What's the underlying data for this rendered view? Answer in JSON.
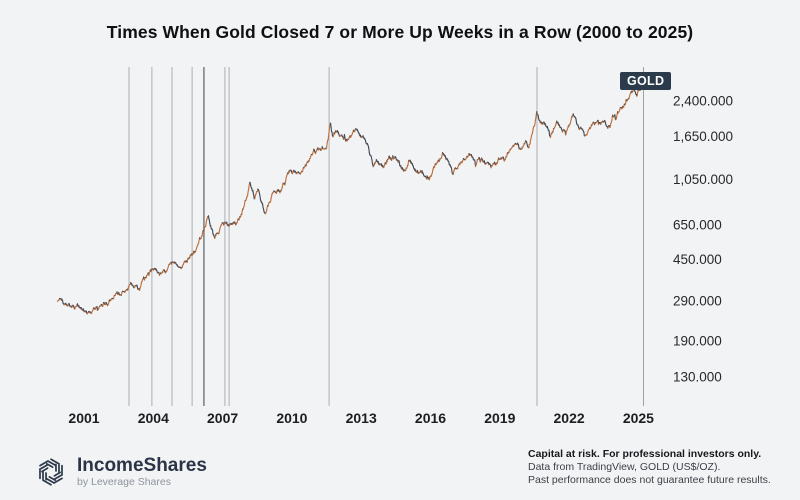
{
  "title": "Times When Gold Closed 7 or More Up Weeks in a Row (2000 to 2025)",
  "symbol_badge": "GOLD",
  "footer": {
    "brand": "IncomeShares",
    "tagline": "by Leverage Shares",
    "disclaimer": {
      "line1": "Capital at risk. For professional investors only.",
      "line2": "Data from TradingView, GOLD (US$/OZ).",
      "line3": "Past performance does not guarantee future results."
    }
  },
  "chart_data": {
    "type": "line",
    "title": "Times When Gold Closed 7 or More Up Weeks in a Row (2000 to 2025)",
    "symbol": "GOLD",
    "unit": "US$/OZ",
    "y_scale": "log",
    "grid": "off",
    "legend_position": "none",
    "x_range_years": [
      1999.85,
      2025.4
    ],
    "x_tick_labels": [
      "2001",
      "2004",
      "2007",
      "2010",
      "2013",
      "2016",
      "2019",
      "2022",
      "2025"
    ],
    "y_ticks": [
      {
        "label": "2,400.000",
        "value": 2400
      },
      {
        "label": "1,650.000",
        "value": 1650
      },
      {
        "label": "1,050.000",
        "value": 1050
      },
      {
        "label": "650.000",
        "value": 650
      },
      {
        "label": "450.000",
        "value": 450
      },
      {
        "label": "290.000",
        "value": 290
      },
      {
        "label": "190.000",
        "value": 190
      },
      {
        "label": "130.000",
        "value": 130
      }
    ],
    "event_markers": [
      {
        "year": 2002.95
      },
      {
        "year": 2003.94
      },
      {
        "year": 2004.81
      },
      {
        "year": 2005.68
      },
      {
        "year": 2006.19,
        "emphasis": true
      },
      {
        "year": 2007.1
      },
      {
        "year": 2007.28
      },
      {
        "year": 2011.61
      },
      {
        "year": 2020.61
      }
    ],
    "series": [
      {
        "name": "GOLD",
        "anchors_year_price": [
          [
            1999.85,
            292
          ],
          [
            2000.0,
            290
          ],
          [
            2000.6,
            277
          ],
          [
            2001.25,
            259
          ],
          [
            2001.8,
            278
          ],
          [
            2002.5,
            312
          ],
          [
            2003.05,
            352
          ],
          [
            2003.35,
            330
          ],
          [
            2003.95,
            408
          ],
          [
            2004.35,
            385
          ],
          [
            2004.95,
            438
          ],
          [
            2005.25,
            422
          ],
          [
            2005.85,
            490
          ],
          [
            2006.38,
            715
          ],
          [
            2006.62,
            572
          ],
          [
            2006.9,
            630
          ],
          [
            2007.3,
            655
          ],
          [
            2007.6,
            660
          ],
          [
            2007.85,
            750
          ],
          [
            2008.2,
            1000
          ],
          [
            2008.4,
            880
          ],
          [
            2008.55,
            960
          ],
          [
            2008.82,
            722
          ],
          [
            2009.2,
            905
          ],
          [
            2009.5,
            935
          ],
          [
            2009.95,
            1175
          ],
          [
            2010.25,
            1105
          ],
          [
            2010.6,
            1235
          ],
          [
            2010.95,
            1405
          ],
          [
            2011.25,
            1435
          ],
          [
            2011.5,
            1520
          ],
          [
            2011.67,
            1880
          ],
          [
            2011.78,
            1630
          ],
          [
            2011.95,
            1745
          ],
          [
            2012.2,
            1620
          ],
          [
            2012.45,
            1575
          ],
          [
            2012.77,
            1770
          ],
          [
            2013.0,
            1665
          ],
          [
            2013.26,
            1555
          ],
          [
            2013.35,
            1385
          ],
          [
            2013.52,
            1225
          ],
          [
            2013.66,
            1320
          ],
          [
            2013.95,
            1200
          ],
          [
            2014.2,
            1335
          ],
          [
            2014.55,
            1285
          ],
          [
            2014.88,
            1145
          ],
          [
            2015.05,
            1285
          ],
          [
            2015.35,
            1175
          ],
          [
            2015.6,
            1125
          ],
          [
            2015.95,
            1055
          ],
          [
            2016.2,
            1235
          ],
          [
            2016.53,
            1360
          ],
          [
            2016.75,
            1305
          ],
          [
            2016.95,
            1130
          ],
          [
            2017.3,
            1255
          ],
          [
            2017.65,
            1345
          ],
          [
            2017.95,
            1285
          ],
          [
            2018.12,
            1350
          ],
          [
            2018.62,
            1180
          ],
          [
            2018.95,
            1275
          ],
          [
            2019.2,
            1290
          ],
          [
            2019.45,
            1415
          ],
          [
            2019.72,
            1545
          ],
          [
            2019.95,
            1475
          ],
          [
            2020.15,
            1570
          ],
          [
            2020.24,
            1485
          ],
          [
            2020.6,
            2060
          ],
          [
            2020.77,
            1890
          ],
          [
            2020.95,
            1885
          ],
          [
            2021.2,
            1735
          ],
          [
            2021.45,
            1900
          ],
          [
            2021.72,
            1775
          ],
          [
            2021.95,
            1805
          ],
          [
            2022.18,
            2040
          ],
          [
            2022.45,
            1845
          ],
          [
            2022.75,
            1640
          ],
          [
            2022.95,
            1805
          ],
          [
            2023.1,
            1865
          ],
          [
            2023.3,
            2015
          ],
          [
            2023.55,
            1935
          ],
          [
            2023.77,
            1835
          ],
          [
            2023.95,
            2055
          ],
          [
            2024.2,
            2165
          ],
          [
            2024.4,
            2330
          ],
          [
            2024.6,
            2395
          ],
          [
            2024.82,
            2735
          ],
          [
            2024.94,
            2620
          ],
          [
            2025.05,
            2760
          ],
          [
            2025.12,
            2840
          ]
        ]
      }
    ],
    "colors": {
      "up_week": "#bf6f3a",
      "down_week": "#3e4957",
      "event_line": "#aaaeb2",
      "event_line_emphasis": "#7e848a",
      "axis_line": "#9aa0a5",
      "badge_bg": "#2c3b4c",
      "badge_text": "#ffffff",
      "background": "#f2f3f5"
    }
  }
}
